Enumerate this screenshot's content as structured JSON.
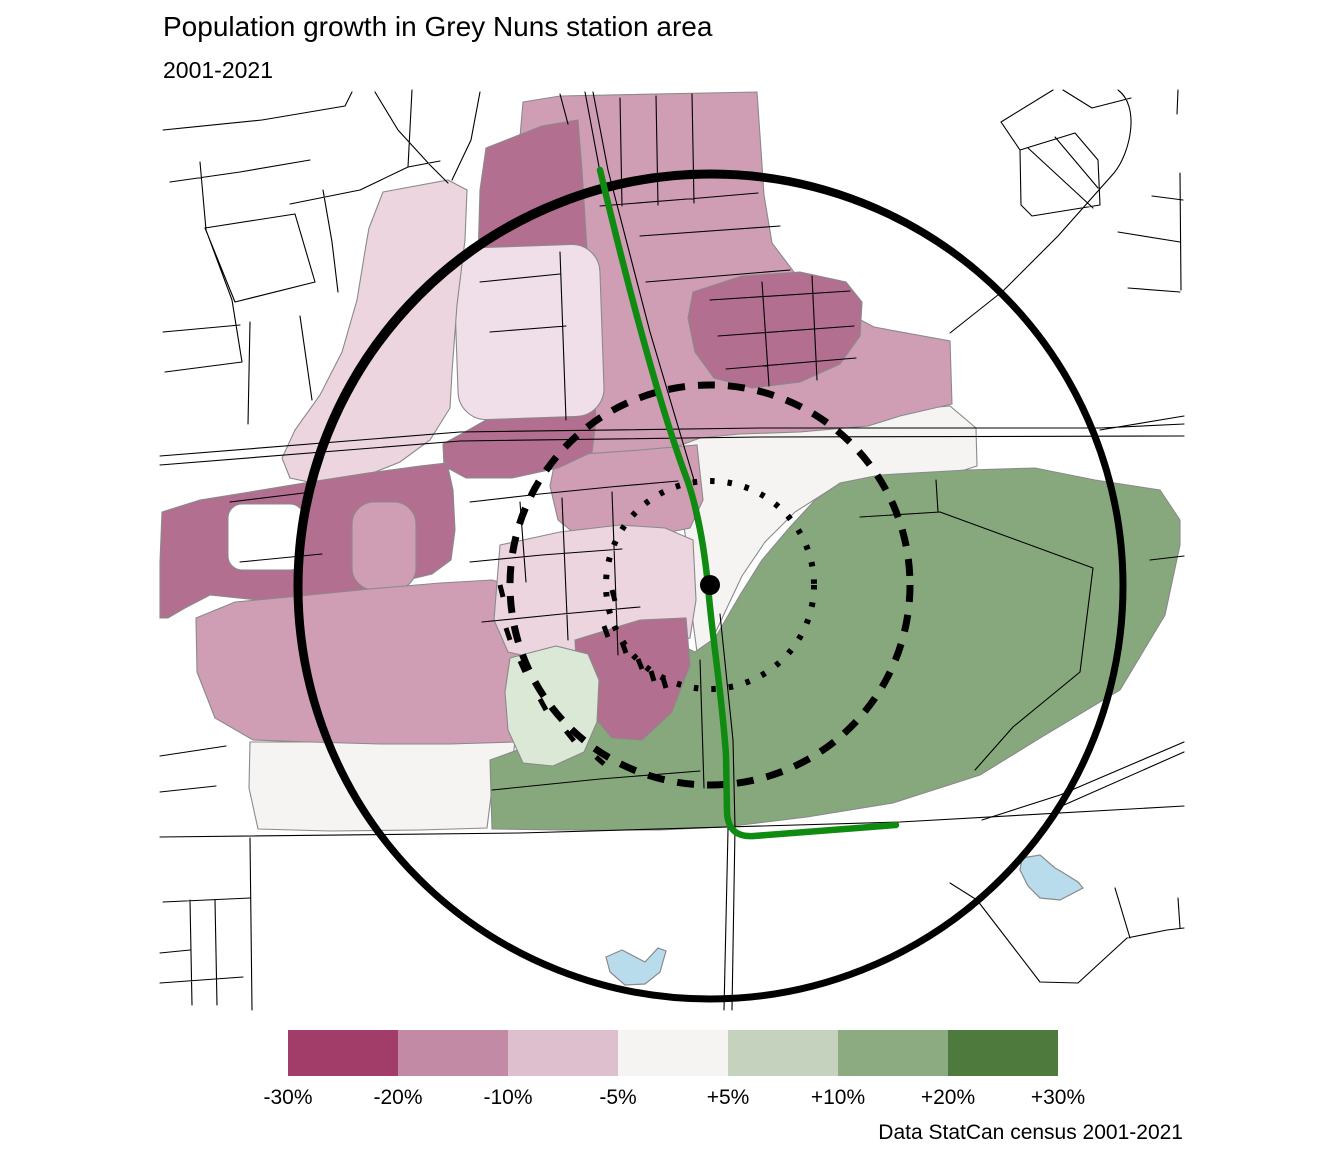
{
  "header": {
    "title": "Population growth in Grey Nuns station area",
    "subtitle": "2001-2021"
  },
  "caption": "Data StatCan census 2001-2021",
  "legend": {
    "labels": [
      "-30%",
      "-20%",
      "-10%",
      "-5%",
      "+5%",
      "+10%",
      "+20%",
      "+30%"
    ],
    "class_colors": [
      "#a23c68",
      "#c38aa5",
      "#debfcd",
      "#f5f4f2",
      "#c5d2be",
      "#8cab80",
      "#4e7a3e"
    ]
  },
  "map": {
    "station_marker": "station-point",
    "rings": [
      "outer-solid-ring",
      "middle-dashed-ring",
      "inner-dotted-ring"
    ],
    "transit_line": "green-transit-line",
    "water_bodies": 2
  },
  "colors": {
    "class-m30": "#a23c68",
    "class-m20": "#c38aa5",
    "class-m10": "#debfcd",
    "class-0": "#f5f4f2",
    "class-p10": "#c5d2be",
    "class-p20": "#8cab80",
    "class-p30": "#4e7a3e",
    "map-dark-pink": "#b36f90",
    "map-med-pink": "#cf9db4",
    "map-light-pink": "#ecd5df",
    "map-pale-pink": "#f0dfe8",
    "map-off-white": "#f5f4f2",
    "map-pale-green": "#dce8d6",
    "map-med-green": "#87a87c",
    "map-water": "#b9dcec",
    "transit-green": "#0f8b12",
    "boundary-gray": "#8a8a8a"
  }
}
